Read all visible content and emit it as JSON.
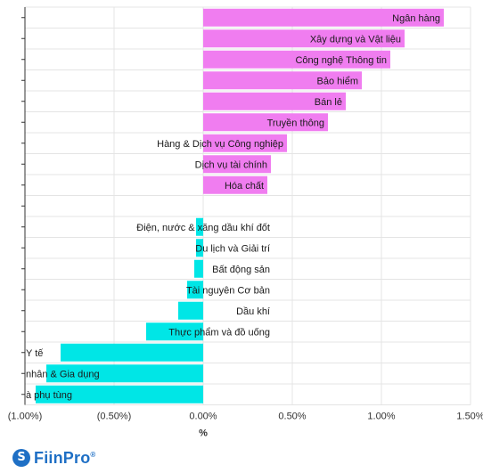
{
  "chart_data": {
    "type": "bar",
    "orientation": "horizontal",
    "xlabel": "%",
    "xlim": [
      -1.0,
      1.5
    ],
    "xticks": [
      -1.0,
      -0.5,
      0.0,
      0.5,
      1.0,
      1.5
    ],
    "xtick_labels": [
      "(1.00%)",
      "(0.50%)",
      "0.00%",
      "0.50%",
      "1.00%",
      "1.50%"
    ],
    "grid": true,
    "colors": {
      "positive": "#f07df0",
      "negative": "#00e6e6"
    },
    "categories": [
      "Ngân hàng",
      "Xây dựng và Vật liệu",
      "Công nghệ Thông tin",
      "Bảo hiểm",
      "Bán lẻ",
      "Truyền thông",
      "Hàng & Dịch vụ Công nghiệp",
      "Dịch vụ tài chính",
      "Hóa chất",
      "",
      "Điện, nước & xăng dầu khí đốt",
      "Du lịch và Giải trí",
      "Bất động sản",
      "Tài nguyên Cơ bản",
      "Dầu khí",
      "Thực phẩm và đồ uống",
      "Y tế",
      "nhân & Gia dụng",
      "à phụ tùng"
    ],
    "values": [
      1.35,
      1.13,
      1.05,
      0.89,
      0.8,
      0.7,
      0.47,
      0.38,
      0.36,
      null,
      -0.04,
      -0.04,
      -0.05,
      -0.09,
      -0.14,
      -0.32,
      -0.8,
      -0.88,
      -0.94
    ]
  },
  "brand": {
    "name": "FiinPro",
    "icon": "fiinpro-logo-icon",
    "reg": "®"
  }
}
